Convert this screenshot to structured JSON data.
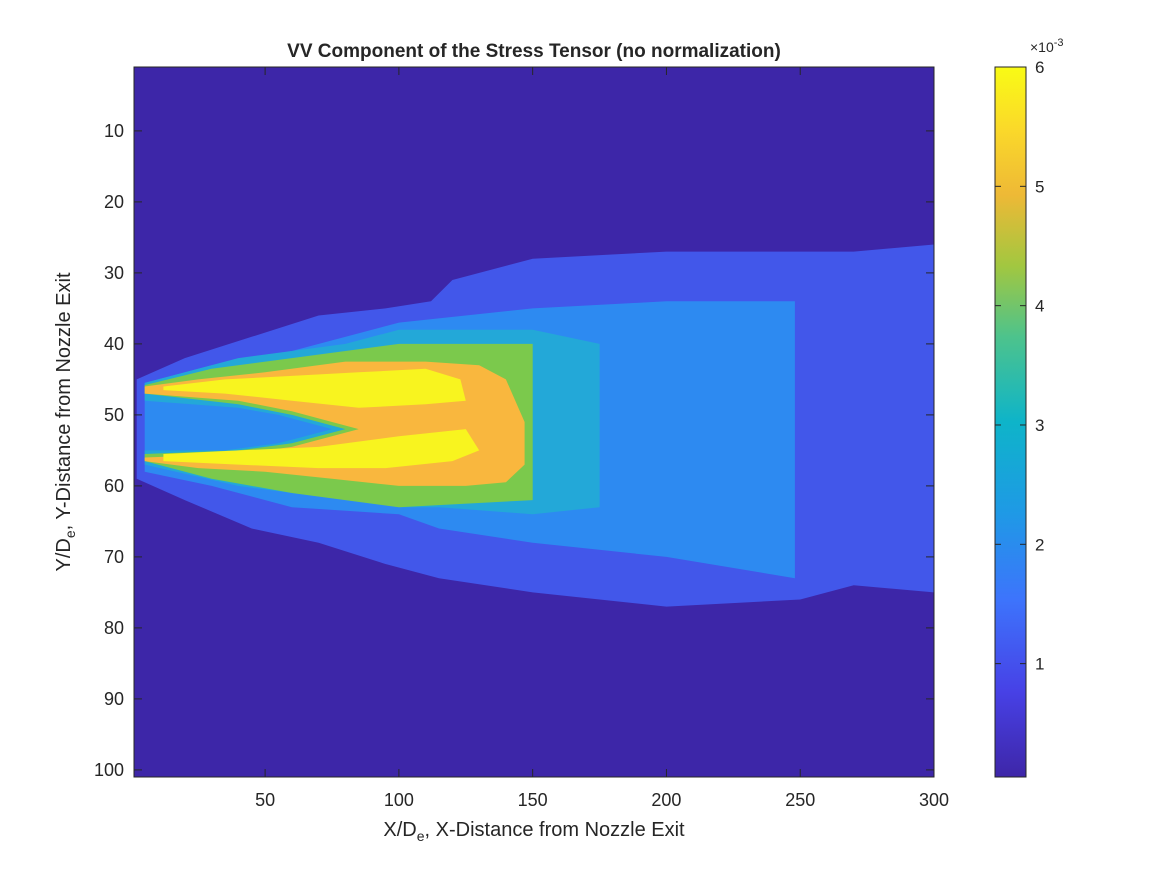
{
  "chart_data": {
    "type": "heatmap",
    "subtype": "filled-contour",
    "title": "VV Component of the Stress Tensor (no normalization)",
    "xlabel": {
      "main": "X/D",
      "sub": "e",
      "rest": ", X-Distance from Nozzle Exit"
    },
    "ylabel": {
      "main": "Y/D",
      "sub": "e",
      "rest": ", Y-Distance from Nozzle Exit"
    },
    "xlim": [
      1,
      300
    ],
    "ylim": [
      1,
      101
    ],
    "y_reversed": true,
    "x_ticks": [
      50,
      100,
      150,
      200,
      250,
      300
    ],
    "y_ticks": [
      10,
      20,
      30,
      40,
      50,
      60,
      70,
      80,
      90,
      100
    ],
    "grid": false,
    "colorbar": {
      "exponent_label": {
        "base": "×10",
        "exp": "-3"
      },
      "range": [
        0.05,
        6
      ],
      "ticks": [
        1,
        2,
        3,
        4,
        5,
        6
      ],
      "colormap": "parula",
      "placement": "right"
    },
    "colors": {
      "background_level": "#3D26A8",
      "level_1": "#4257EA",
      "level_2": "#2D8AF1",
      "level_3": "#23A8D8",
      "level_4": "#7BC94C",
      "level_5": "#F9B73E",
      "level_6": "#F8F41F"
    },
    "regions": [
      {
        "level": 1,
        "color_key": "level_1",
        "x": [
          2,
          20,
          45,
          70,
          95,
          112,
          120,
          150,
          200,
          250,
          270,
          300,
          300,
          270,
          250,
          200,
          150,
          115,
          95,
          70,
          45,
          20,
          2
        ],
        "y": [
          45,
          42,
          39,
          36,
          35,
          34,
          31,
          28,
          27,
          27,
          27,
          26,
          75,
          74,
          76,
          77,
          75,
          73,
          71,
          68,
          66,
          62,
          59
        ]
      },
      {
        "level": 2,
        "color_key": "level_2",
        "x": [
          5,
          30,
          60,
          100,
          150,
          200,
          248,
          248,
          200,
          150,
          115,
          100,
          60,
          30,
          5
        ],
        "y": [
          45.5,
          43,
          41,
          37,
          35,
          34,
          34,
          73,
          70,
          68,
          66,
          64,
          63,
          60,
          58
        ]
      },
      {
        "level": 3,
        "color_key": "level_3",
        "x": [
          5,
          40,
          80,
          100,
          115,
          150,
          175,
          175,
          150,
          115,
          100,
          80,
          40,
          5
        ],
        "y": [
          45.5,
          42,
          40,
          38,
          38,
          38,
          40,
          63,
          64,
          63,
          63,
          62,
          60,
          57
        ],
        "hole": {
          "x": [
            5,
            40,
            55,
            75,
            55,
            35,
            5
          ],
          "y": [
            48,
            49,
            50,
            52,
            54,
            55,
            55
          ]
        }
      },
      {
        "level": 4,
        "color_key": "level_4",
        "x": [
          5,
          30,
          60,
          100,
          150,
          150,
          100,
          60,
          30,
          5
        ],
        "y": [
          45.8,
          43.5,
          42,
          40,
          40,
          62,
          63,
          61,
          59,
          56.5
        ],
        "hole": {
          "x": [
            5,
            40,
            60,
            80,
            60,
            40,
            5
          ],
          "y": [
            47,
            48.5,
            50,
            52,
            54,
            55,
            55.5
          ]
        }
      },
      {
        "level": 5,
        "color_key": "level_5",
        "x": [
          5,
          25,
          50,
          80,
          110,
          130,
          140,
          147,
          147,
          140,
          125,
          100,
          75,
          50,
          25,
          5
        ],
        "y": [
          46,
          45,
          44,
          42.5,
          42.5,
          43,
          45,
          51,
          57,
          59.5,
          60,
          60,
          59,
          58,
          57.5,
          56.5
        ],
        "hole": {
          "x": [
            5,
            40,
            60,
            85,
            60,
            40,
            5
          ],
          "y": [
            47,
            48,
            49.5,
            52,
            54.5,
            55.5,
            56
          ]
        }
      },
      {
        "level": 6,
        "color_key": "level_6",
        "x": [
          12,
          35,
          60,
          85,
          110,
          123,
          125,
          110,
          85,
          60,
          35,
          12
        ],
        "y": [
          46,
          45,
          44.5,
          44,
          43.5,
          45,
          48,
          48.5,
          49,
          48,
          47,
          46.5
        ]
      },
      {
        "level": 6,
        "color_key": "level_6",
        "x": [
          12,
          40,
          70,
          100,
          125,
          130,
          120,
          95,
          70,
          40,
          12
        ],
        "y": [
          55.5,
          55,
          54.5,
          53,
          52,
          55,
          56.5,
          57.5,
          57.5,
          57,
          56.5
        ]
      }
    ]
  }
}
